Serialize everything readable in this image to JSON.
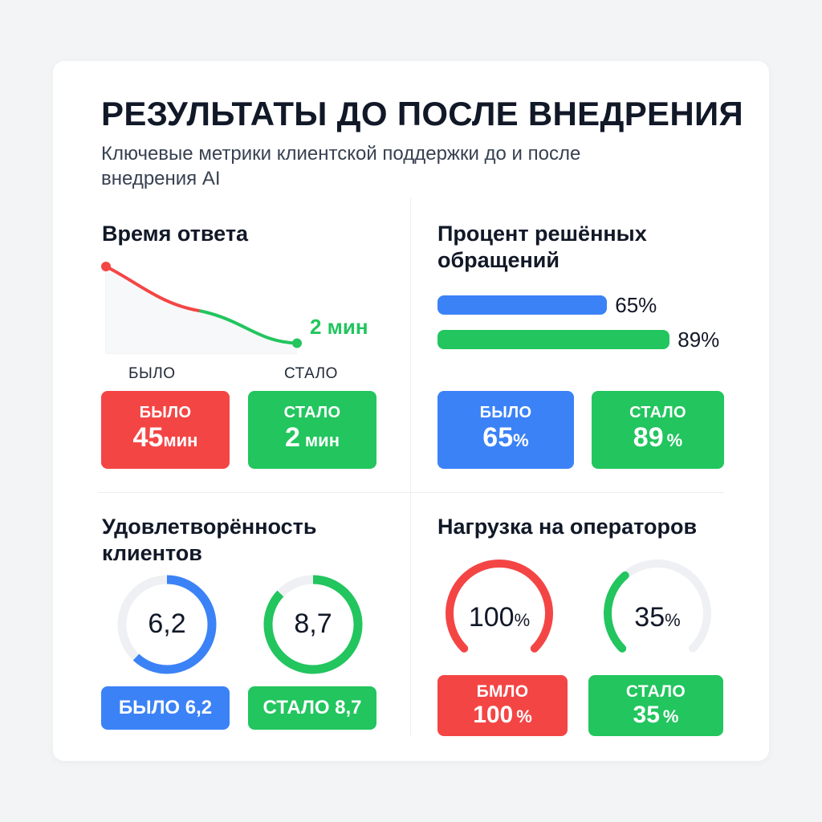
{
  "title": "РЕЗУЛЬТАТЫ ДО ПОСЛЕ ВНЕДРЕНИЯ",
  "subtitle": "Ключевые метрики клиентской поддержки до и после внедрения AI",
  "colors": {
    "red": "#f44545",
    "green": "#22c55e",
    "blue": "#3b82f6",
    "track": "#eef0f3"
  },
  "response": {
    "title": "Время ответа",
    "end_label": "2 мин",
    "before_cap": "БЫЛО",
    "before_val": "45",
    "before_unit": "мин",
    "after_cap": "СТАЛО",
    "after_val": "2",
    "after_unit": "мин"
  },
  "resolved": {
    "title": "Процент решённых обращений",
    "before_cap": "БЫЛО",
    "before_val": "65",
    "before_unit": "%",
    "after_cap": "СТАЛО",
    "after_val": "89",
    "after_unit": "%"
  },
  "satisfaction": {
    "title": "Удовлетворённость клиентов",
    "before_num": "6,2",
    "after_num": "8,7",
    "before_pill": "БЫЛО 6,2",
    "after_pill": "СТАЛО 8,7"
  },
  "load": {
    "title": "Нагрузка на операторов",
    "before_num": "100",
    "after_num": "35",
    "unit": "%",
    "before_cap": "БМЛО",
    "before_val": "100",
    "before_unit": "%",
    "after_cap": "СТАЛО",
    "after_val": "35",
    "after_unit": "%"
  },
  "chart_data": [
    {
      "type": "line",
      "categories": [
        "БЫЛО",
        "СТАЛО"
      ],
      "values": [
        45,
        2
      ],
      "series": [
        {
          "values": [
            45,
            2
          ]
        }
      ]
    },
    {
      "type": "bar",
      "orientation": "horizontal",
      "categories": [
        "БЫЛО",
        "СТАЛО"
      ],
      "values": [
        65,
        89
      ],
      "labels": [
        "65%",
        "89%"
      ],
      "max": 100
    },
    {
      "type": "pie",
      "subtype": "donut",
      "categories": [
        "БЫЛО",
        "СТАЛО"
      ],
      "values": [
        6.2,
        8.7
      ],
      "max": 10
    },
    {
      "type": "pie",
      "subtype": "gauge",
      "categories": [
        "БМЛО",
        "СТАЛО"
      ],
      "values": [
        100,
        35
      ],
      "max": 100
    }
  ]
}
